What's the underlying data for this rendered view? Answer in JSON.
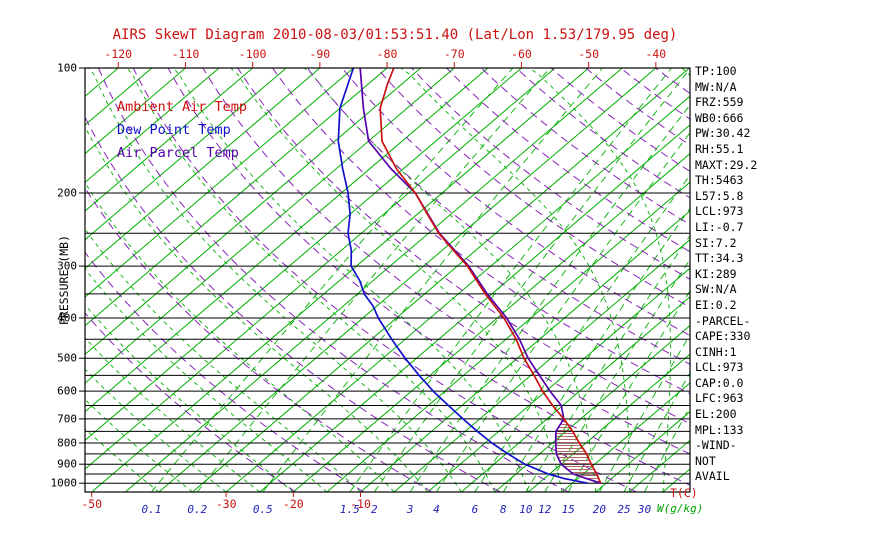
{
  "chart_data": {
    "type": "skewt",
    "title": "AIRS SkewT Diagram 2010-08-03/01:53:51.40 (Lat/Lon 1.53/179.95 deg)",
    "legend": [
      {
        "label": "Ambient Air Temp",
        "color": "#cc1111"
      },
      {
        "label": "Dew Point Temp",
        "color": "#1111cc"
      },
      {
        "label": "Air Parcel Temp",
        "color": "#5500aa"
      }
    ],
    "pressure_axis": {
      "label": "PRESSURE (MB)",
      "range": [
        100,
        1050
      ],
      "ticks": [
        100,
        200,
        300,
        400,
        500,
        600,
        700,
        800,
        900,
        1000
      ],
      "gridlines": [
        200,
        250,
        300,
        350,
        400,
        450,
        500,
        550,
        600,
        650,
        700,
        750,
        800,
        850,
        900,
        950,
        1000
      ]
    },
    "top_axis": {
      "ticks": [
        -120,
        -110,
        -100,
        -90,
        -80,
        -70,
        -60,
        -50,
        -40
      ]
    },
    "bottom_axis": {
      "temp_ticks": [
        -50,
        -30,
        -20,
        -10
      ],
      "temp_unit": "T(C)",
      "mixing_ticks": [
        0.1,
        0.2,
        0.5,
        1.5,
        2,
        3,
        4,
        6,
        8,
        10,
        12,
        15,
        20,
        25,
        30
      ],
      "mixing_unit": "W(g/kg)"
    },
    "grid": {
      "isotherms": {
        "min": -130,
        "max": 40,
        "step": 5,
        "color": "#00b000"
      },
      "dry_adiabats": {
        "theta_min": 250,
        "theta_max": 460,
        "step": 10,
        "color": "#8822bb"
      },
      "moist_adiabats": {
        "start_min": -40,
        "start_max": 40,
        "step": 5,
        "color": "#00b000"
      },
      "mixing_lines": {
        "color": "#00b000"
      }
    },
    "series": {
      "ambient": {
        "name": "Ambient Air Temp",
        "color": "#cc1111",
        "points": [
          [
            100,
            -79
          ],
          [
            110,
            -77
          ],
          [
            125,
            -74
          ],
          [
            150,
            -68
          ],
          [
            175,
            -61
          ],
          [
            200,
            -54
          ],
          [
            225,
            -48.5
          ],
          [
            250,
            -43.5
          ],
          [
            275,
            -38.3
          ],
          [
            300,
            -33.5
          ],
          [
            350,
            -26
          ],
          [
            400,
            -19
          ],
          [
            450,
            -13.5
          ],
          [
            500,
            -9
          ],
          [
            550,
            -4.5
          ],
          [
            600,
            -0.5
          ],
          [
            650,
            3.5
          ],
          [
            700,
            7.5
          ],
          [
            750,
            11
          ],
          [
            800,
            14
          ],
          [
            850,
            17
          ],
          [
            900,
            19.5
          ],
          [
            950,
            22
          ],
          [
            1000,
            24.2
          ]
        ]
      },
      "dewpoint": {
        "name": "Dew Point Temp",
        "color": "#1111cc",
        "points": [
          [
            100,
            -85
          ],
          [
            125,
            -80
          ],
          [
            150,
            -74.5
          ],
          [
            175,
            -69
          ],
          [
            200,
            -64
          ],
          [
            225,
            -60
          ],
          [
            250,
            -57
          ],
          [
            275,
            -53.5
          ],
          [
            300,
            -50.8
          ],
          [
            325,
            -47
          ],
          [
            350,
            -44
          ],
          [
            375,
            -40.5
          ],
          [
            400,
            -37.7
          ],
          [
            450,
            -32
          ],
          [
            500,
            -26.7
          ],
          [
            550,
            -21.6
          ],
          [
            600,
            -16.8
          ],
          [
            650,
            -12
          ],
          [
            700,
            -7.5
          ],
          [
            750,
            -3.2
          ],
          [
            800,
            1
          ],
          [
            850,
            5.3
          ],
          [
            900,
            9.6
          ],
          [
            950,
            14.8
          ],
          [
            975,
            18
          ],
          [
            1000,
            22.3
          ]
        ]
      },
      "parcel": {
        "name": "Air Parcel Temp",
        "color": "#5500aa",
        "points": [
          [
            100,
            -84
          ],
          [
            125,
            -76.5
          ],
          [
            150,
            -70
          ],
          [
            175,
            -61.8
          ],
          [
            200,
            -54
          ],
          [
            250,
            -43.4
          ],
          [
            300,
            -33.3
          ],
          [
            350,
            -25.7
          ],
          [
            400,
            -18.6
          ],
          [
            450,
            -13
          ],
          [
            500,
            -8.4
          ],
          [
            550,
            -3.7
          ],
          [
            600,
            0.6
          ],
          [
            650,
            4.8
          ],
          [
            700,
            7.5
          ],
          [
            750,
            8.5
          ],
          [
            800,
            10.5
          ],
          [
            850,
            12.5
          ],
          [
            900,
            15
          ],
          [
            950,
            18.5
          ],
          [
            975,
            21.3
          ],
          [
            1000,
            24.2
          ]
        ]
      }
    },
    "cape_hatch": {
      "pressure_range": [
        700,
        1000
      ],
      "color": "#aa5555"
    },
    "stats": [
      "TP:100",
      "MW:N/A",
      "FRZ:559",
      "WB0:666",
      "PW:30.42",
      "RH:55.1",
      "MAXT:29.2",
      "TH:5463",
      "L57:5.8",
      "LCL:973",
      "LI:-0.7",
      "SI:7.2",
      "TT:34.3",
      "KI:289",
      "SW:N/A",
      "EI:0.2",
      "-PARCEL-",
      "CAPE:330",
      "CINH:1",
      "LCL:973",
      "CAP:0.0",
      "LFC:963",
      "EL:200",
      "MPL:133",
      "-WIND-",
      "NOT",
      "AVAIL"
    ],
    "colors": {
      "title": "#cc1111",
      "top_axis": "#cc1111",
      "bottom_temp": "#cc1111",
      "mixing": "#2222bb",
      "mixing_unit": "#00a300",
      "temp_unit": "#cc1111",
      "pressure": "#000000",
      "frame": "#000000"
    }
  }
}
